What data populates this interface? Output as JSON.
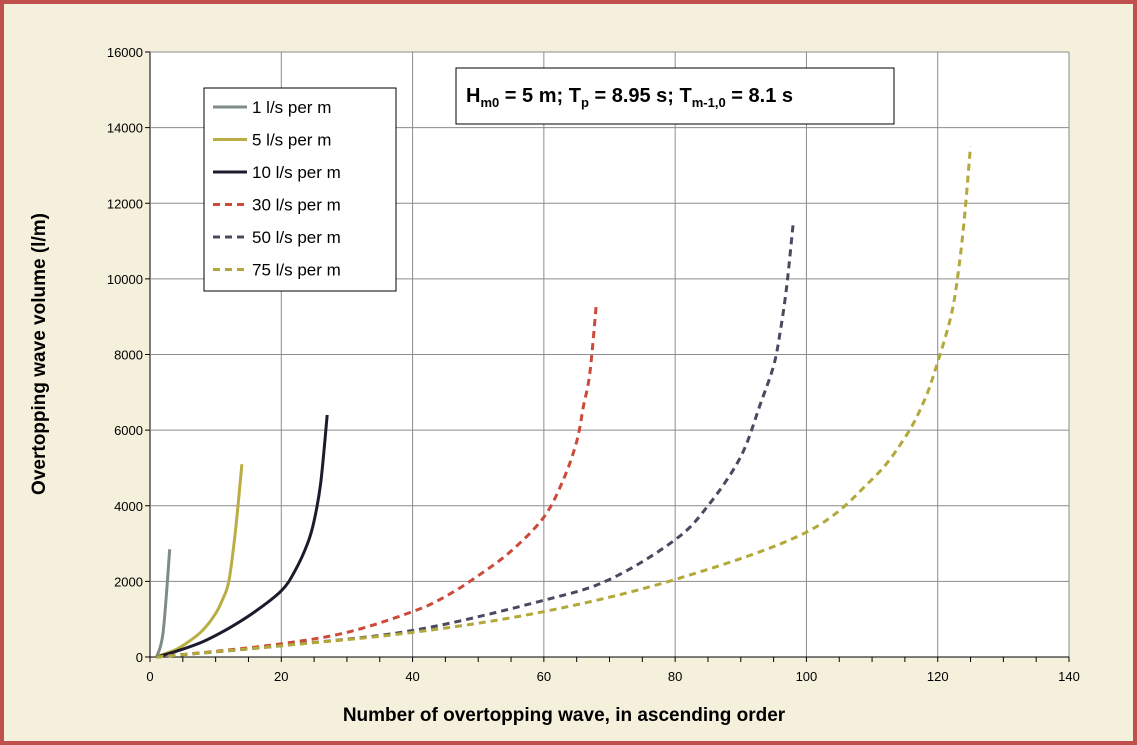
{
  "chart_data": {
    "type": "line",
    "xlabel": "Number of overtopping wave, in ascending order",
    "ylabel": "Overtopping wave volume (l/m)",
    "xlim": [
      0,
      140
    ],
    "ylim": [
      0,
      16000
    ],
    "x_ticks": [
      "0",
      "20",
      "40",
      "60",
      "80",
      "100",
      "120",
      "140"
    ],
    "y_ticks": [
      "0",
      "2000",
      "4000",
      "6000",
      "8000",
      "10000",
      "12000",
      "14000",
      "16000"
    ],
    "grid": "major gridlines",
    "legend_position": "top-left",
    "annotation": {
      "parts": [
        {
          "t": "H",
          "sub": false
        },
        {
          "t": "m0",
          "sub": true
        },
        {
          "t": " = 5 m; T",
          "sub": false
        },
        {
          "t": "p",
          "sub": true
        },
        {
          "t": " = 8.95 s; T",
          "sub": false
        },
        {
          "t": "m-1,0",
          "sub": true
        },
        {
          "t": " = 8.1 s",
          "sub": false
        }
      ]
    },
    "series": [
      {
        "name": "1 l/s per m",
        "color": "#7f8c86",
        "dash": "solid",
        "points": [
          [
            1,
            0
          ],
          [
            2,
            650
          ],
          [
            3,
            2850
          ]
        ]
      },
      {
        "name": "5 l/s per m",
        "color": "#b9ad43",
        "dash": "solid",
        "points": [
          [
            1,
            0
          ],
          [
            2,
            70
          ],
          [
            4,
            200
          ],
          [
            6,
            420
          ],
          [
            8,
            700
          ],
          [
            10,
            1150
          ],
          [
            11,
            1500
          ],
          [
            12,
            2000
          ],
          [
            13,
            3300
          ],
          [
            14,
            5100
          ]
        ]
      },
      {
        "name": "10 l/s per m",
        "color": "#1f1a2b",
        "dash": "solid",
        "points": [
          [
            1,
            0
          ],
          [
            4,
            150
          ],
          [
            8,
            400
          ],
          [
            12,
            760
          ],
          [
            16,
            1200
          ],
          [
            20,
            1750
          ],
          [
            22,
            2250
          ],
          [
            24,
            3000
          ],
          [
            25,
            3600
          ],
          [
            26,
            4600
          ],
          [
            27,
            6400
          ]
        ]
      },
      {
        "name": "30 l/s per m",
        "color": "#cc4a39",
        "dash": "dash",
        "points": [
          [
            1,
            0
          ],
          [
            10,
            150
          ],
          [
            20,
            350
          ],
          [
            30,
            650
          ],
          [
            40,
            1200
          ],
          [
            45,
            1600
          ],
          [
            50,
            2150
          ],
          [
            55,
            2800
          ],
          [
            60,
            3700
          ],
          [
            63,
            4700
          ],
          [
            65,
            5700
          ],
          [
            66,
            6600
          ],
          [
            67,
            7500
          ],
          [
            68,
            9350
          ]
        ]
      },
      {
        "name": "50 l/s per m",
        "color": "#4b4860",
        "dash": "dash",
        "points": [
          [
            1,
            0
          ],
          [
            20,
            300
          ],
          [
            40,
            700
          ],
          [
            60,
            1500
          ],
          [
            70,
            2050
          ],
          [
            80,
            3100
          ],
          [
            85,
            4000
          ],
          [
            90,
            5300
          ],
          [
            93,
            6700
          ],
          [
            95,
            7700
          ],
          [
            96,
            8600
          ],
          [
            97,
            9800
          ],
          [
            98,
            11500
          ]
        ]
      },
      {
        "name": "75 l/s per m",
        "color": "#b2a93a",
        "dash": "dash",
        "points": [
          [
            1,
            0
          ],
          [
            20,
            300
          ],
          [
            40,
            650
          ],
          [
            60,
            1200
          ],
          [
            80,
            2050
          ],
          [
            100,
            3300
          ],
          [
            110,
            4700
          ],
          [
            115,
            5800
          ],
          [
            118,
            6800
          ],
          [
            120,
            7800
          ],
          [
            122,
            9000
          ],
          [
            123,
            10000
          ],
          [
            124,
            11500
          ],
          [
            125,
            13500
          ]
        ]
      }
    ]
  }
}
